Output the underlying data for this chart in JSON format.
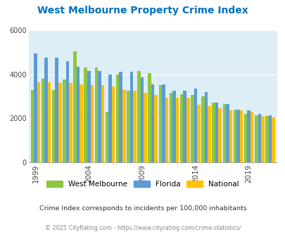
{
  "title": "West Melbourne Property Crime Index",
  "years": [
    1999,
    2000,
    2001,
    2002,
    2003,
    2004,
    2005,
    2006,
    2007,
    2008,
    2009,
    2010,
    2011,
    2012,
    2013,
    2014,
    2015,
    2016,
    2017,
    2018,
    2019,
    2020,
    2021
  ],
  "west_melbourne": [
    3300,
    3800,
    3300,
    3750,
    5050,
    4300,
    4300,
    2300,
    4000,
    3250,
    4150,
    4050,
    3500,
    3150,
    3100,
    3050,
    3000,
    2700,
    2650,
    2400,
    2200,
    2150,
    2100
  ],
  "florida": [
    4950,
    4750,
    4750,
    4600,
    4350,
    4150,
    4150,
    4000,
    4100,
    4100,
    3850,
    3550,
    3550,
    3250,
    3250,
    3350,
    3200,
    2700,
    2650,
    2400,
    2350,
    2200,
    2150
  ],
  "national": [
    3650,
    3650,
    3600,
    3600,
    3550,
    3500,
    3500,
    3450,
    3300,
    3250,
    3150,
    3050,
    2950,
    2950,
    2950,
    2600,
    2550,
    2450,
    2350,
    2350,
    2300,
    2100,
    2050
  ],
  "west_melbourne_color": "#8dc63f",
  "florida_color": "#5b9bd5",
  "national_color": "#ffc000",
  "background_color": "#deeef6",
  "title_color": "#0070c0",
  "subtitle": "Crime Index corresponds to incidents per 100,000 inhabitants",
  "footer": "© 2025 CityRating.com - https://www.cityrating.com/crime-statistics/",
  "ylim": [
    0,
    6000
  ],
  "yticks": [
    0,
    2000,
    4000,
    6000
  ],
  "xtick_years": [
    1999,
    2004,
    2009,
    2014,
    2019
  ]
}
